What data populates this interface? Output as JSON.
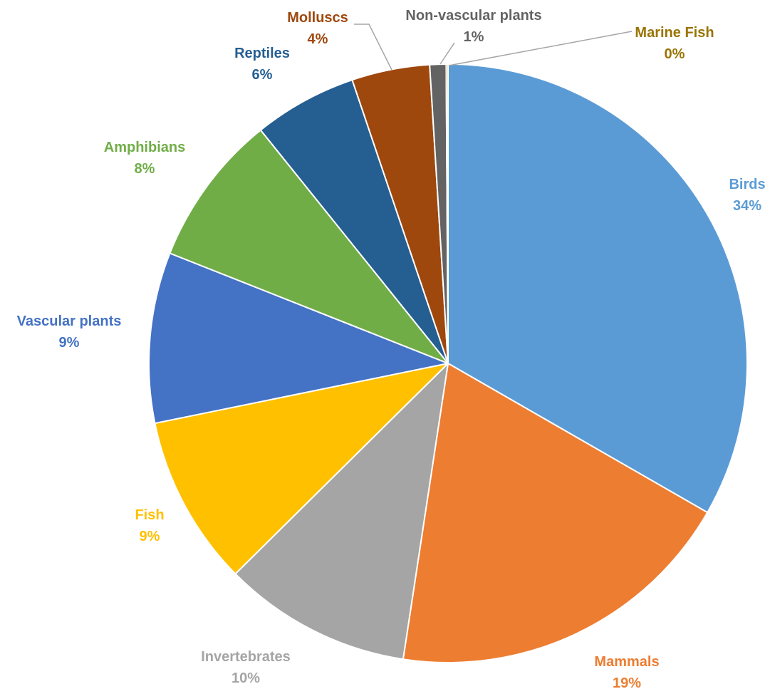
{
  "chart_data": {
    "type": "pie",
    "title": "",
    "slices": [
      {
        "label": "Birds",
        "value": 34,
        "pct_label": "34%",
        "color": "#5B9BD5"
      },
      {
        "label": "Mammals",
        "value": 19.5,
        "pct_label": "19%",
        "color": "#ED7D31"
      },
      {
        "label": "Invertebrates",
        "value": 10.4,
        "pct_label": "10%",
        "color": "#A5A5A5"
      },
      {
        "label": "Fish",
        "value": 9.4,
        "pct_label": "9%",
        "color": "#FFC000"
      },
      {
        "label": "Vascular plants",
        "value": 9.4,
        "pct_label": "9%",
        "color": "#4472C4"
      },
      {
        "label": "Amphibians",
        "value": 8.4,
        "pct_label": "8%",
        "color": "#70AD47"
      },
      {
        "label": "Reptiles",
        "value": 5.7,
        "pct_label": "6%",
        "color": "#255E91"
      },
      {
        "label": "Molluscs",
        "value": 4.3,
        "pct_label": "4%",
        "color": "#9E480E"
      },
      {
        "label": "Non-vascular plants",
        "value": 0.9,
        "pct_label": "1%",
        "color": "#636363"
      },
      {
        "label": "Marine Fish",
        "value": 0.1,
        "pct_label": "0%",
        "color": "#997300"
      }
    ],
    "start_angle_deg": 0,
    "direction": "clockwise",
    "legend": "none",
    "leader_color": "#A6A6A6"
  }
}
